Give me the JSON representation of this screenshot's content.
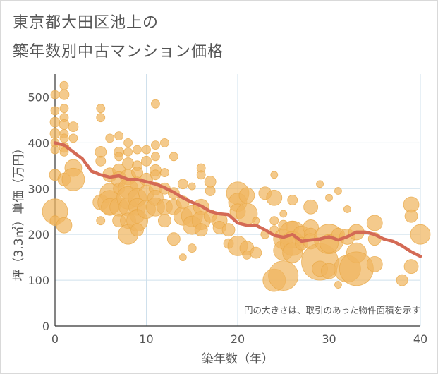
{
  "title_line1": "東京都大田区池上の",
  "title_line2": "築年数別中古マンション価格",
  "chart_data": {
    "type": "scatter",
    "title": "東京都大田区池上の 築年数別中古マンション価格",
    "xlabel": "築年数（年）",
    "ylabel": "坪（3.3㎡）単価（万円）",
    "xlim": [
      0,
      40
    ],
    "ylim": [
      0,
      550
    ],
    "xticks": [
      0,
      10,
      20,
      30,
      40
    ],
    "yticks": [
      0,
      100,
      200,
      300,
      400,
      500
    ],
    "grid": true,
    "note": "円の大きさは、取引のあった物件面積を示す",
    "colors": {
      "bubble": "#f0b660",
      "bubble_edge": "#e8a845",
      "trend": "#d46a55",
      "grid": "#cfe0ec",
      "axis_text": "#555555"
    },
    "series": [
      {
        "kind": "bubbles",
        "points": [
          [
            0,
            505,
            6
          ],
          [
            0,
            470,
            6
          ],
          [
            0,
            445,
            7
          ],
          [
            0,
            420,
            7
          ],
          [
            0,
            400,
            6
          ],
          [
            0,
            385,
            6
          ],
          [
            0,
            330,
            8
          ],
          [
            0,
            250,
            18
          ],
          [
            0,
            230,
            7
          ],
          [
            1,
            525,
            6
          ],
          [
            1,
            505,
            7
          ],
          [
            1,
            475,
            6
          ],
          [
            1,
            455,
            6
          ],
          [
            1,
            440,
            7
          ],
          [
            1,
            420,
            6
          ],
          [
            1,
            410,
            6
          ],
          [
            1,
            390,
            7
          ],
          [
            1,
            380,
            6
          ],
          [
            1,
            320,
            9
          ],
          [
            1,
            220,
            11
          ],
          [
            2,
            435,
            7
          ],
          [
            2,
            410,
            6
          ],
          [
            2,
            345,
            12
          ],
          [
            2,
            320,
            16
          ],
          [
            5,
            475,
            6
          ],
          [
            5,
            455,
            6
          ],
          [
            5,
            380,
            8
          ],
          [
            5,
            360,
            7
          ],
          [
            5,
            270,
            11
          ],
          [
            5,
            230,
            6
          ],
          [
            6,
            410,
            6
          ],
          [
            6,
            330,
            10
          ],
          [
            6,
            290,
            14
          ],
          [
            6,
            270,
            17
          ],
          [
            6,
            260,
            12
          ],
          [
            7,
            415,
            6
          ],
          [
            7,
            380,
            7
          ],
          [
            7,
            370,
            6
          ],
          [
            7,
            340,
            9
          ],
          [
            7,
            320,
            11
          ],
          [
            7,
            300,
            8
          ],
          [
            7,
            260,
            13
          ],
          [
            7,
            230,
            9
          ],
          [
            8,
            400,
            6
          ],
          [
            8,
            380,
            6
          ],
          [
            8,
            355,
            8
          ],
          [
            8,
            325,
            11
          ],
          [
            8,
            300,
            14
          ],
          [
            8,
            280,
            16
          ],
          [
            8,
            260,
            13
          ],
          [
            8,
            230,
            11
          ],
          [
            8,
            200,
            14
          ],
          [
            9,
            385,
            6
          ],
          [
            9,
            350,
            7
          ],
          [
            9,
            335,
            8
          ],
          [
            9,
            310,
            10
          ],
          [
            9,
            280,
            13
          ],
          [
            9,
            260,
            12
          ],
          [
            9,
            240,
            10
          ],
          [
            9,
            230,
            15
          ],
          [
            9,
            210,
            9
          ],
          [
            10,
            385,
            6
          ],
          [
            10,
            360,
            7
          ],
          [
            10,
            320,
            9
          ],
          [
            10,
            290,
            11
          ],
          [
            10,
            255,
            13
          ],
          [
            11,
            485,
            6
          ],
          [
            11,
            395,
            6
          ],
          [
            11,
            370,
            6
          ],
          [
            11,
            340,
            8
          ],
          [
            11,
            330,
            7
          ],
          [
            11,
            300,
            9
          ],
          [
            11,
            280,
            11
          ],
          [
            11,
            260,
            13
          ],
          [
            12,
            400,
            6
          ],
          [
            12,
            335,
            6
          ],
          [
            12,
            300,
            8
          ],
          [
            12,
            260,
            11
          ],
          [
            12,
            230,
            9
          ],
          [
            13,
            370,
            6
          ],
          [
            13,
            290,
            8
          ],
          [
            13,
            260,
            11
          ],
          [
            13,
            190,
            9
          ],
          [
            14,
            310,
            7
          ],
          [
            14,
            270,
            9
          ],
          [
            14,
            240,
            13
          ],
          [
            14,
            150,
            5
          ],
          [
            15,
            240,
            15
          ],
          [
            15,
            220,
            13
          ],
          [
            15,
            170,
            6
          ],
          [
            15,
            305,
            5
          ],
          [
            16,
            345,
            6
          ],
          [
            16,
            330,
            6
          ],
          [
            16,
            260,
            11
          ],
          [
            16,
            230,
            13
          ],
          [
            16,
            210,
            9
          ],
          [
            17,
            315,
            8
          ],
          [
            17,
            295,
            7
          ],
          [
            17,
            240,
            9
          ],
          [
            18,
            230,
            11
          ],
          [
            18,
            215,
            9
          ],
          [
            19,
            210,
            9
          ],
          [
            19,
            180,
            7
          ],
          [
            20,
            290,
            16
          ],
          [
            20,
            270,
            13
          ],
          [
            20,
            250,
            11
          ],
          [
            20,
            175,
            14
          ],
          [
            21,
            285,
            11
          ],
          [
            21,
            245,
            15
          ],
          [
            21,
            170,
            10
          ],
          [
            21,
            155,
            6
          ],
          [
            22,
            160,
            8
          ],
          [
            22,
            230,
            5
          ],
          [
            23,
            290,
            9
          ],
          [
            23,
            200,
            6
          ],
          [
            24,
            330,
            5
          ],
          [
            24,
            280,
            11
          ],
          [
            24,
            230,
            6
          ],
          [
            24,
            210,
            6
          ],
          [
            24,
            100,
            16
          ],
          [
            25,
            245,
            5
          ],
          [
            25,
            220,
            7
          ],
          [
            25,
            190,
            14
          ],
          [
            25,
            165,
            14
          ],
          [
            25,
            110,
            21
          ],
          [
            26,
            275,
            7
          ],
          [
            26,
            215,
            9
          ],
          [
            26,
            200,
            19
          ],
          [
            26,
            180,
            17
          ],
          [
            26,
            160,
            14
          ],
          [
            27,
            200,
            12
          ],
          [
            27,
            180,
            9
          ],
          [
            28,
            260,
            10
          ],
          [
            28,
            215,
            11
          ],
          [
            28,
            200,
            9
          ],
          [
            28,
            185,
            11
          ],
          [
            29,
            310,
            5
          ],
          [
            29,
            140,
            26
          ],
          [
            29,
            125,
            11
          ],
          [
            30,
            280,
            5
          ],
          [
            30,
            190,
            21
          ],
          [
            30,
            180,
            13
          ],
          [
            30,
            120,
            11
          ],
          [
            31,
            295,
            5
          ],
          [
            31,
            200,
            9
          ],
          [
            31,
            90,
            5
          ],
          [
            32,
            255,
            5
          ],
          [
            32,
            195,
            11
          ],
          [
            32,
            125,
            19
          ],
          [
            33,
            205,
            11
          ],
          [
            33,
            160,
            14
          ],
          [
            33,
            125,
            24
          ],
          [
            35,
            225,
            11
          ],
          [
            35,
            190,
            9
          ],
          [
            35,
            135,
            11
          ],
          [
            38,
            100,
            8
          ],
          [
            39,
            265,
            11
          ],
          [
            39,
            240,
            9
          ],
          [
            39,
            130,
            10
          ],
          [
            40,
            200,
            14
          ]
        ]
      },
      {
        "kind": "trend",
        "x": [
          0,
          1,
          2,
          3,
          4,
          5,
          6,
          7,
          8,
          9,
          10,
          11,
          12,
          13,
          14,
          15,
          16,
          17,
          18,
          19,
          20,
          21,
          22,
          23,
          24,
          25,
          26,
          27,
          28,
          29,
          30,
          31,
          32,
          33,
          34,
          35,
          36,
          37,
          38,
          39,
          40
        ],
        "y": [
          400,
          395,
          380,
          365,
          338,
          330,
          325,
          328,
          320,
          320,
          315,
          310,
          302,
          292,
          280,
          270,
          262,
          250,
          245,
          243,
          225,
          220,
          220,
          210,
          198,
          194,
          200,
          185,
          188,
          190,
          195,
          188,
          195,
          205,
          205,
          200,
          190,
          185,
          175,
          162,
          152
        ]
      }
    ]
  }
}
